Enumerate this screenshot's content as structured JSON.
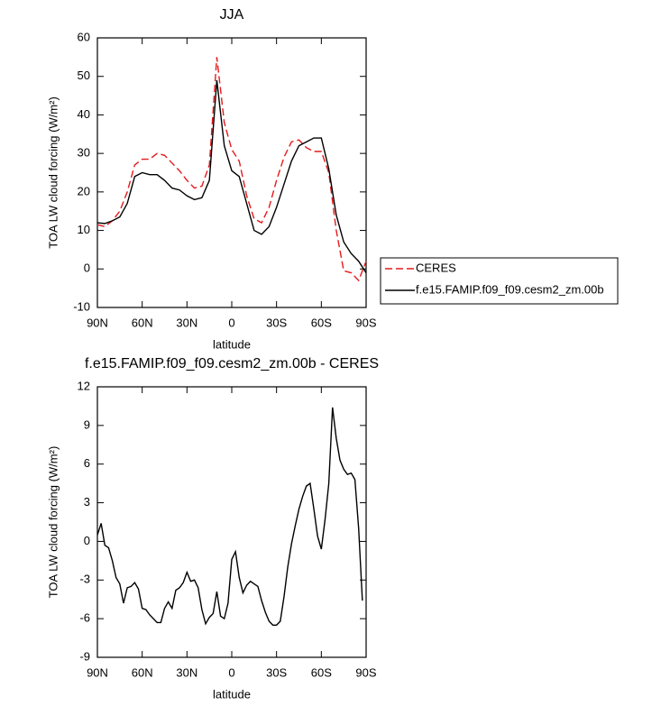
{
  "chart_data": [
    {
      "type": "line",
      "title": "JJA",
      "xlabel": "latitude",
      "ylabel": "TOA LW cloud forcing (W/m²)",
      "x": [
        90,
        85,
        80,
        75,
        70,
        65,
        60,
        55,
        50,
        45,
        40,
        35,
        30,
        25,
        20,
        15,
        10,
        5,
        0,
        -5,
        -10,
        -15,
        -20,
        -25,
        -30,
        -35,
        -40,
        -45,
        -50,
        -55,
        -60,
        -65,
        -70,
        -75,
        -80,
        -85,
        -90
      ],
      "series": [
        {
          "name": "CERES",
          "color": "#e31a1c",
          "dash": true,
          "values": [
            11.5,
            11,
            12.5,
            15,
            20,
            27,
            28.5,
            28.5,
            30,
            29.5,
            27.5,
            25.5,
            23,
            21,
            21.5,
            27,
            55,
            38,
            31,
            28,
            19,
            13,
            12,
            16,
            23,
            29,
            33,
            33.5,
            31.5,
            30.5,
            30.5,
            25,
            10,
            -0.5,
            -1,
            -3,
            2
          ]
        },
        {
          "name": "f.e15.FAMIP.f09_f09.cesm2_zm.00b",
          "color": "#000000",
          "dash": false,
          "values": [
            12,
            11.8,
            12.5,
            13.5,
            17,
            24,
            25,
            24.5,
            24.5,
            23,
            21,
            20.5,
            19,
            18,
            18.5,
            23,
            49,
            32,
            25.5,
            24,
            17,
            10,
            9,
            11,
            16,
            22,
            28,
            32,
            33,
            34,
            34,
            26,
            14,
            7,
            4,
            2,
            -1
          ]
        }
      ],
      "xlim": [
        90,
        -90
      ],
      "xticks": [
        {
          "value": 90,
          "label": "90N"
        },
        {
          "value": 60,
          "label": "60N"
        },
        {
          "value": 30,
          "label": "30N"
        },
        0,
        {
          "value": -30,
          "label": "30S"
        },
        {
          "value": -60,
          "label": "60S"
        },
        {
          "value": -90,
          "label": "90S"
        }
      ],
      "ylim": [
        -10,
        60
      ],
      "yticks": [
        -10,
        0,
        10,
        20,
        30,
        40,
        50,
        60
      ],
      "legend": "right"
    },
    {
      "type": "line",
      "title": "f.e15.FAMIP.f09_f09.cesm2_zm.00b - CERES",
      "xlabel": "latitude",
      "ylabel": "TOA LW cloud forcing (W/m²)",
      "x": [
        90,
        87.5,
        85,
        82.5,
        80,
        77.5,
        75,
        72.5,
        70,
        67.5,
        65,
        62.5,
        60,
        57.5,
        55,
        52.5,
        50,
        47.5,
        45,
        42.5,
        40,
        37.5,
        35,
        32.5,
        30,
        27.5,
        25,
        22.5,
        20,
        17.5,
        15,
        12.5,
        10,
        7.5,
        5,
        2.5,
        0,
        -2.5,
        -5,
        -7.5,
        -10,
        -12.5,
        -15,
        -17.5,
        -20,
        -22.5,
        -25,
        -27.5,
        -30,
        -32.5,
        -35,
        -37.5,
        -40,
        -42.5,
        -45,
        -47.5,
        -50,
        -52.5,
        -55,
        -57.5,
        -60,
        -62.5,
        -65,
        -67.5,
        -70,
        -72.5,
        -75,
        -77.5,
        -80,
        -82.5,
        -85,
        -87.5
      ],
      "series": [
        {
          "color": "#000000",
          "dash": false,
          "values": [
            0.5,
            1.4,
            -0.3,
            -0.5,
            -1.5,
            -2.8,
            -3.3,
            -4.8,
            -3.6,
            -3.5,
            -3.2,
            -3.7,
            -5.2,
            -5.3,
            -5.7,
            -6.0,
            -6.3,
            -6.3,
            -5.2,
            -4.7,
            -5.2,
            -3.8,
            -3.6,
            -3.2,
            -2.4,
            -3.1,
            -3.0,
            -3.6,
            -5.3,
            -6.4,
            -5.9,
            -5.6,
            -3.9,
            -5.8,
            -6.0,
            -4.8,
            -1.4,
            -0.8,
            -2.8,
            -4.0,
            -3.4,
            -3.1,
            -3.3,
            -3.5,
            -4.6,
            -5.5,
            -6.2,
            -6.5,
            -6.5,
            -6.2,
            -4.3,
            -2.0,
            -0.2,
            1.2,
            2.5,
            3.5,
            4.3,
            4.5,
            2.5,
            0.4,
            -0.6,
            1.7,
            4.5,
            10.4,
            8.0,
            6.3,
            5.6,
            5.2,
            5.3,
            4.8,
            1.0,
            -4.6
          ]
        }
      ],
      "xlim": [
        90,
        -90
      ],
      "xticks": [
        {
          "value": 90,
          "label": "90N"
        },
        {
          "value": 60,
          "label": "60N"
        },
        {
          "value": 30,
          "label": "30N"
        },
        0,
        {
          "value": -30,
          "label": "30S"
        },
        {
          "value": -60,
          "label": "60S"
        },
        {
          "value": -90,
          "label": "90S"
        }
      ],
      "ylim": [
        -9,
        12
      ],
      "yticks": [
        -9,
        -6,
        -3,
        0,
        3,
        6,
        9,
        12
      ]
    }
  ]
}
